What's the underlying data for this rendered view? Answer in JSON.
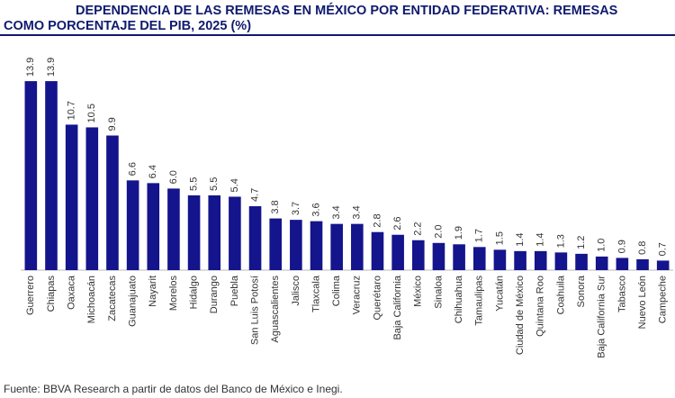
{
  "chart_data": {
    "type": "bar",
    "title": "DEPENDENCIA DE LAS REMESAS EN MÉXICO POR ENTIDAD FEDERATIVA: REMESAS COMO PORCENTAJE DEL PIB, 2025 (%)",
    "source": "Fuente: BBVA Research a partir de datos del Banco de México e Inegi.",
    "color": "#14148c",
    "categories": [
      "Guerrero",
      "Chiapas",
      "Oaxaca",
      "Michoacán",
      "Zacatecas",
      "Guanajuato",
      "Nayarit",
      "Morelos",
      "Hidalgo",
      "Durango",
      "Puebla",
      "San Luis Potosí",
      "Aguascalientes",
      "Jalisco",
      "Tlaxcala",
      "Colima",
      "Veracruz",
      "Querétaro",
      "Baja California",
      "México",
      "Sinaloa",
      "Chihuahua",
      "Tamaulipas",
      "Yucatán",
      "Ciudad de México",
      "Quintana Roo",
      "Coahuila",
      "Sonora",
      "Baja California Sur",
      "Tabasco",
      "Nuevo León",
      "Campeche"
    ],
    "values": [
      13.9,
      13.9,
      10.7,
      10.5,
      9.9,
      6.6,
      6.4,
      6.0,
      5.5,
      5.5,
      5.4,
      4.7,
      3.8,
      3.7,
      3.6,
      3.4,
      3.4,
      2.8,
      2.6,
      2.2,
      2.0,
      1.9,
      1.7,
      1.5,
      1.4,
      1.4,
      1.3,
      1.2,
      1.0,
      0.9,
      0.8,
      0.7
    ],
    "value_labels": [
      "13.9",
      "13.9",
      "10.7",
      "10.5",
      "9.9",
      "6.6",
      "6.4",
      "6.0",
      "5.5",
      "5.5",
      "5.4",
      "4.7",
      "3.8",
      "3.7",
      "3.6",
      "3.4",
      "3.4",
      "2.8",
      "2.6",
      "2.2",
      "2.0",
      "1.9",
      "1.7",
      "1.5",
      "1.4",
      "1.4",
      "1.3",
      "1.2",
      "1.0",
      "0.9",
      "0.8",
      "0.7"
    ]
  }
}
